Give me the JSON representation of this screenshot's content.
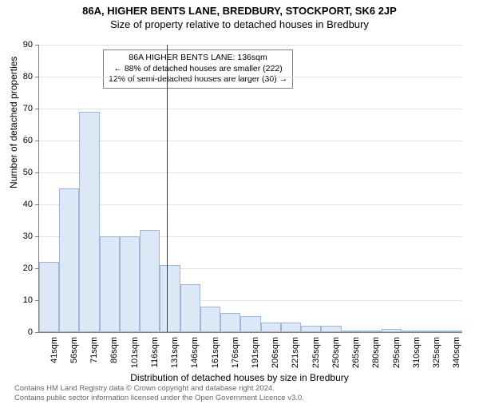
{
  "titles": {
    "main": "86A, HIGHER BENTS LANE, BREDBURY, STOCKPORT, SK6 2JP",
    "sub": "Size of property relative to detached houses in Bredbury"
  },
  "chart": {
    "type": "histogram",
    "ylabel": "Number of detached properties",
    "xlabel": "Distribution of detached houses by size in Bredbury",
    "ylim": [
      0,
      90
    ],
    "ytick_step": 10,
    "xticks": [
      "41sqm",
      "56sqm",
      "71sqm",
      "86sqm",
      "101sqm",
      "116sqm",
      "131sqm",
      "146sqm",
      "161sqm",
      "176sqm",
      "191sqm",
      "206sqm",
      "221sqm",
      "235sqm",
      "250sqm",
      "265sqm",
      "280sqm",
      "295sqm",
      "310sqm",
      "325sqm",
      "340sqm"
    ],
    "values": [
      22,
      45,
      69,
      30,
      30,
      32,
      21,
      15,
      8,
      6,
      5,
      3,
      3,
      2,
      2,
      0,
      0.5,
      1,
      0,
      0.5,
      0
    ],
    "bar_fill": "#dde8f6",
    "bar_stroke": "#a0b8d8",
    "grid_color": "#e0e0e0",
    "axis_color": "#808080",
    "background_color": "#ffffff",
    "marker": {
      "position_index": 6.35,
      "color": "#cc0000"
    }
  },
  "infobox": {
    "line1": "86A HIGHER BENTS LANE: 136sqm",
    "line2": "← 88% of detached houses are smaller (222)",
    "line3": "12% of semi-detached houses are larger (30) →"
  },
  "footer": {
    "line1": "Contains HM Land Registry data © Crown copyright and database right 2024.",
    "line2": "Contains public sector information licensed under the Open Government Licence v3.0."
  }
}
